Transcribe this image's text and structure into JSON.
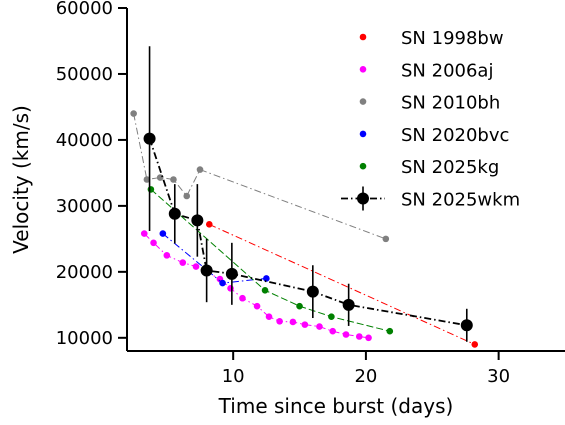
{
  "chart_data": {
    "type": "scatter",
    "xlabel": "Time since burst (days)",
    "ylabel": "Velocity (km/s)",
    "xlim": [
      2,
      35
    ],
    "ylim": [
      8000,
      60000
    ],
    "xticks": [
      10,
      20,
      30
    ],
    "yticks": [
      10000,
      20000,
      30000,
      40000,
      50000,
      60000
    ],
    "xtick_labels": [
      "10",
      "20",
      "30"
    ],
    "ytick_labels": [
      "10000",
      "20000",
      "30000",
      "40000",
      "50000",
      "60000"
    ],
    "grid": false,
    "legend_position": "top-right",
    "series": [
      {
        "name": "SN 1998bw",
        "color": "#ff0000",
        "marker": "dot",
        "line": "dashdot",
        "x": [
          8.2,
          28.2
        ],
        "y": [
          27200,
          9000
        ]
      },
      {
        "name": "SN 2006aj",
        "color": "#ff00ff",
        "marker": "dot",
        "line": "dashdot",
        "x": [
          3.3,
          4.0,
          5.0,
          6.2,
          7.2,
          8.0,
          9.0,
          9.8,
          10.7,
          11.8,
          12.7,
          13.5,
          14.5,
          15.4,
          16.5,
          17.5,
          18.5,
          19.5,
          20.2
        ],
        "y": [
          25800,
          24400,
          22500,
          21400,
          20800,
          20000,
          18900,
          17500,
          16000,
          14800,
          13200,
          12500,
          12400,
          12000,
          11700,
          11000,
          10500,
          10200,
          10000
        ]
      },
      {
        "name": "SN 2010bh",
        "color": "#808080",
        "marker": "dot",
        "line": "dashdot",
        "x": [
          2.5,
          3.5,
          4.5,
          5.5,
          6.5,
          7.5,
          21.5
        ],
        "y": [
          44000,
          34000,
          34300,
          34000,
          31500,
          35500,
          25000
        ]
      },
      {
        "name": "SN 2020bvc",
        "color": "#0000ff",
        "marker": "dot",
        "line": "dashdot",
        "x": [
          4.7,
          9.2,
          12.5
        ],
        "y": [
          25800,
          18300,
          19000
        ]
      },
      {
        "name": "SN 2025kg",
        "color": "#008000",
        "marker": "dot",
        "line": "dashed-partial",
        "x": [
          3.8,
          12.4,
          15.0,
          17.4,
          21.8
        ],
        "y": [
          32500,
          17200,
          14800,
          13200,
          11000
        ]
      },
      {
        "name": "SN 2025wkm",
        "color": "#000000",
        "marker": "circle",
        "line": "dashdot",
        "x": [
          3.7,
          5.6,
          7.3,
          8.0,
          9.9,
          16.0,
          18.7,
          27.6
        ],
        "y": [
          40200,
          28800,
          27800,
          20200,
          19700,
          17000,
          15000,
          11900
        ],
        "yerr": [
          14000,
          4500,
          5500,
          4800,
          4700,
          4000,
          3200,
          2500
        ]
      }
    ]
  }
}
